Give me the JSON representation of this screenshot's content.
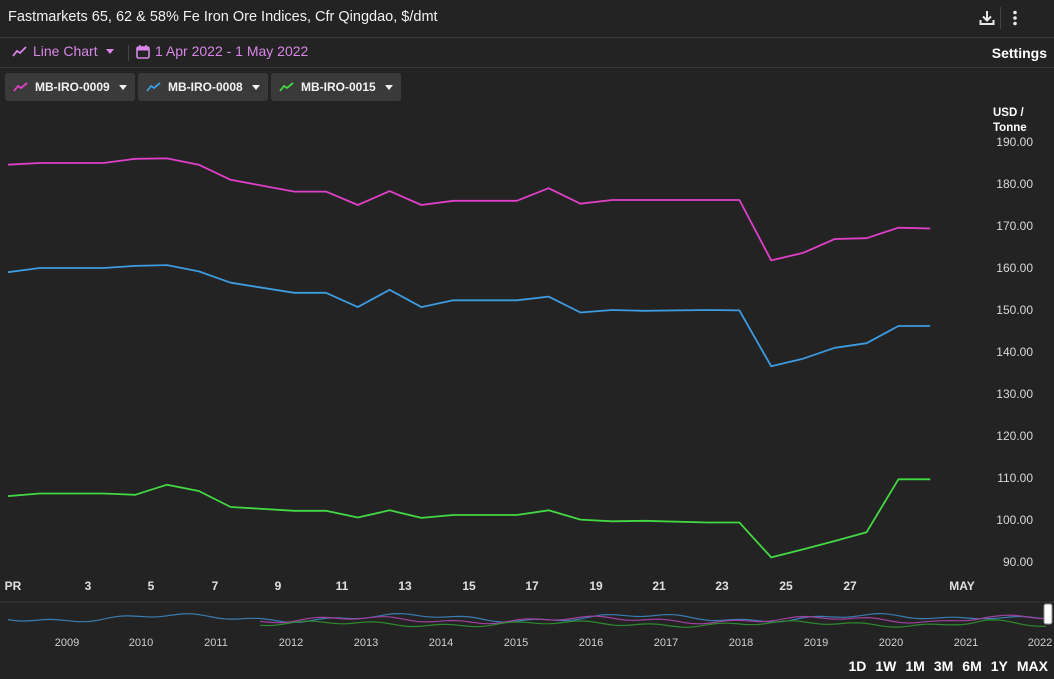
{
  "header": {
    "title": "Fastmarkets 65, 62 & 58% Fe Iron Ore Indices, Cfr Qingdao, $/dmt"
  },
  "toolbar": {
    "chart_type_label": "Line Chart",
    "date_range_label": "1 Apr 2022 - 1 May 2022",
    "settings_label": "Settings"
  },
  "series_chips": [
    {
      "label": "MB-IRO-0009",
      "color": "#e040c8"
    },
    {
      "label": "MB-IRO-0008",
      "color": "#3d9be0"
    },
    {
      "label": "MB-IRO-0015",
      "color": "#43d943"
    }
  ],
  "range_buttons": [
    "1D",
    "1W",
    "1M",
    "3M",
    "6M",
    "1Y",
    "MAX"
  ],
  "chart_data": {
    "type": "line",
    "y_unit_label": "USD / Tonne",
    "ylim": [
      86,
      196
    ],
    "y_ticks": [
      "190.00",
      "180.00",
      "170.00",
      "160.00",
      "150.00",
      "140.00",
      "130.00",
      "120.00",
      "110.00",
      "100.00",
      "90.00"
    ],
    "x_ticks": [
      "PR",
      "3",
      "5",
      "7",
      "9",
      "11",
      "13",
      "15",
      "17",
      "19",
      "21",
      "23",
      "25",
      "27",
      "MAY"
    ],
    "series": [
      {
        "name": "MB-IRO-0009",
        "color": "#e040c8",
        "x": [
          "2022-04-01",
          "2022-04-02",
          "2022-04-03",
          "2022-04-04",
          "2022-04-05",
          "2022-04-06",
          "2022-04-07",
          "2022-04-08",
          "2022-04-10",
          "2022-04-11",
          "2022-04-12",
          "2022-04-13",
          "2022-04-14",
          "2022-04-15",
          "2022-04-17",
          "2022-04-18",
          "2022-04-19",
          "2022-04-20",
          "2022-04-21",
          "2022-04-23",
          "2022-04-24",
          "2022-04-25",
          "2022-04-26",
          "2022-04-27",
          "2022-04-28",
          "2022-04-29",
          "2022-04-30"
        ],
        "values": [
          184.6,
          185,
          185,
          185,
          186,
          186.1,
          184.6,
          181,
          178.2,
          178.2,
          175,
          178.3,
          175,
          176,
          176,
          179,
          175.3,
          176.2,
          176.2,
          176.2,
          176.2,
          161.8,
          163.6,
          166.9,
          167.1,
          169.6,
          169.4
        ]
      },
      {
        "name": "MB-IRO-0008",
        "color": "#3d9be0",
        "x": [
          "2022-04-01",
          "2022-04-02",
          "2022-04-03",
          "2022-04-04",
          "2022-04-05",
          "2022-04-06",
          "2022-04-07",
          "2022-04-08",
          "2022-04-10",
          "2022-04-11",
          "2022-04-12",
          "2022-04-13",
          "2022-04-14",
          "2022-04-15",
          "2022-04-17",
          "2022-04-18",
          "2022-04-19",
          "2022-04-20",
          "2022-04-21",
          "2022-04-23",
          "2022-04-24",
          "2022-04-25",
          "2022-04-26",
          "2022-04-27",
          "2022-04-28",
          "2022-04-29",
          "2022-04-30"
        ],
        "values": [
          159,
          160,
          160,
          160,
          160.5,
          160.7,
          159.2,
          156.5,
          154.1,
          154.1,
          150.7,
          154.8,
          150.7,
          152.3,
          152.3,
          153.2,
          149.4,
          150,
          149.8,
          150,
          149.9,
          136.6,
          138.4,
          141,
          142.1,
          146.2,
          146.2
        ]
      },
      {
        "name": "MB-IRO-0015",
        "color": "#43d943",
        "x": [
          "2022-04-01",
          "2022-04-02",
          "2022-04-03",
          "2022-04-04",
          "2022-04-05",
          "2022-04-06",
          "2022-04-07",
          "2022-04-08",
          "2022-04-10",
          "2022-04-11",
          "2022-04-12",
          "2022-04-13",
          "2022-04-14",
          "2022-04-15",
          "2022-04-17",
          "2022-04-18",
          "2022-04-19",
          "2022-04-20",
          "2022-04-21",
          "2022-04-23",
          "2022-04-24",
          "2022-04-25",
          "2022-04-26",
          "2022-04-27",
          "2022-04-28",
          "2022-04-29",
          "2022-04-30"
        ],
        "values": [
          105.7,
          106.3,
          106.3,
          106.3,
          106,
          108.4,
          106.9,
          103.1,
          102.2,
          102.2,
          100.6,
          102.3,
          100.5,
          101.2,
          101.2,
          102.3,
          100.1,
          99.7,
          99.8,
          99.4,
          99.4,
          91.1,
          93,
          95,
          97.1,
          109.7,
          109.7
        ]
      }
    ],
    "navigator": {
      "year_labels": [
        "2009",
        "2010",
        "2011",
        "2012",
        "2013",
        "2014",
        "2015",
        "2016",
        "2017",
        "2018",
        "2019",
        "2020",
        "2021",
        "2022"
      ]
    }
  }
}
